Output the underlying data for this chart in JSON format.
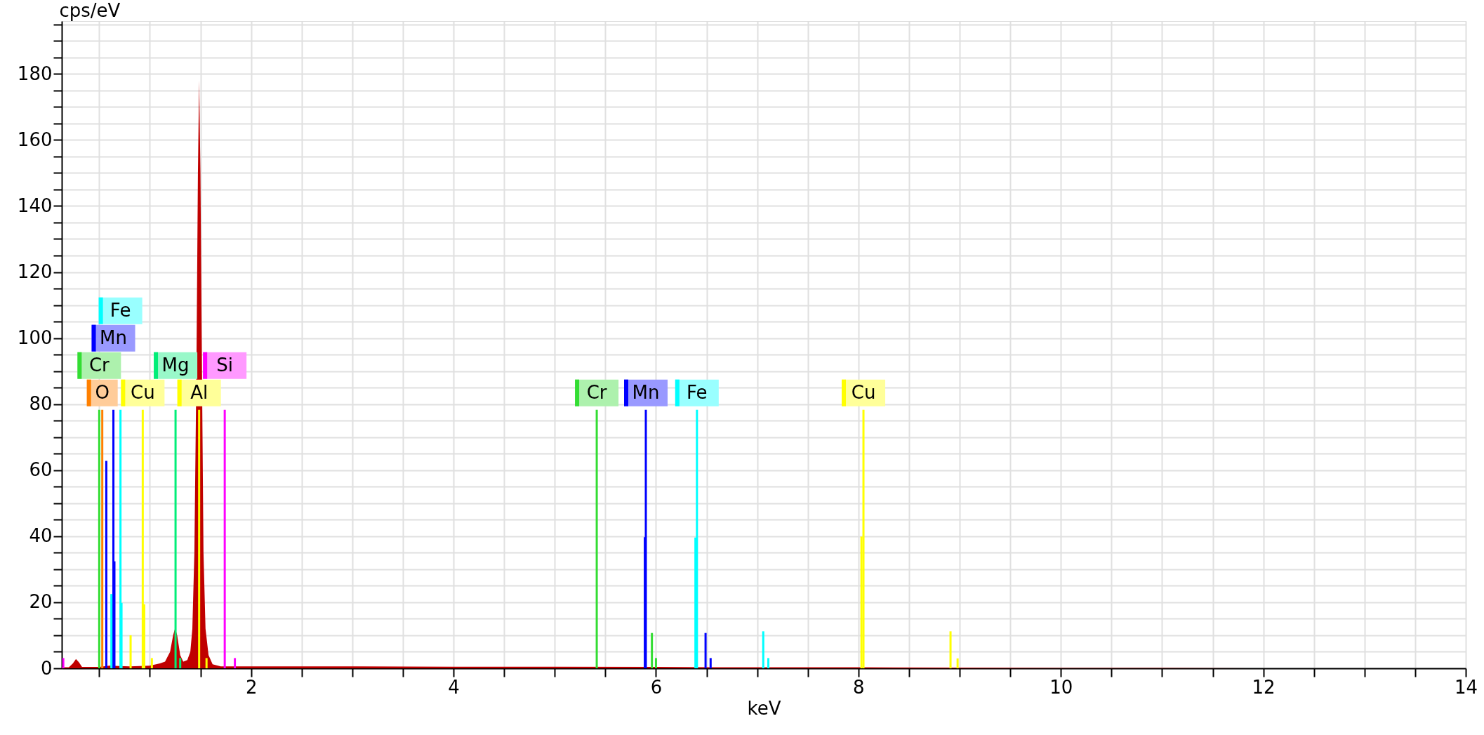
{
  "chart_data": {
    "type": "bar",
    "xlabel": "keV",
    "ylabel": "cps/eV",
    "xlim": [
      0.13,
      14
    ],
    "ylim": [
      0,
      196
    ],
    "xticks": [
      {
        "value": 0.5,
        "label": null
      },
      {
        "value": 1,
        "label": null
      },
      {
        "value": 1.5,
        "label": null
      },
      2,
      {
        "value": 2.5,
        "label": null
      },
      {
        "value": 3,
        "label": null
      },
      {
        "value": 3.5,
        "label": null
      },
      4,
      {
        "value": 4.5,
        "label": null
      },
      {
        "value": 5,
        "label": null
      },
      {
        "value": 5.5,
        "label": null
      },
      6,
      {
        "value": 6.5,
        "label": null
      },
      {
        "value": 7,
        "label": null
      },
      {
        "value": 7.5,
        "label": null
      },
      8,
      {
        "value": 8.5,
        "label": null
      },
      {
        "value": 9,
        "label": null
      },
      {
        "value": 9.5,
        "label": null
      },
      10,
      {
        "value": 10.5,
        "label": null
      },
      {
        "value": 11,
        "label": null
      },
      {
        "value": 11.5,
        "label": null
      },
      12,
      {
        "value": 12.5,
        "label": null
      },
      {
        "value": 13,
        "label": null
      },
      {
        "value": 13.5,
        "label": null
      },
      14
    ],
    "yticks": [
      0,
      {
        "value": 5,
        "label": null
      },
      {
        "value": 10,
        "label": null
      },
      {
        "value": 15,
        "label": null
      },
      20,
      {
        "value": 25,
        "label": null
      },
      {
        "value": 30,
        "label": null
      },
      {
        "value": 35,
        "label": null
      },
      40,
      {
        "value": 45,
        "label": null
      },
      {
        "value": 50,
        "label": null
      },
      {
        "value": 55,
        "label": null
      },
      60,
      {
        "value": 65,
        "label": null
      },
      {
        "value": 70,
        "label": null
      },
      {
        "value": 75,
        "label": null
      },
      80,
      {
        "value": 85,
        "label": null
      },
      {
        "value": 90,
        "label": null
      },
      {
        "value": 95,
        "label": null
      },
      100,
      {
        "value": 105,
        "label": null
      },
      {
        "value": 110,
        "label": null
      },
      {
        "value": 115,
        "label": null
      },
      120,
      {
        "value": 125,
        "label": null
      },
      {
        "value": 130,
        "label": null
      },
      {
        "value": 135,
        "label": null
      },
      140,
      {
        "value": 145,
        "label": null
      },
      {
        "value": 150,
        "label": null
      },
      {
        "value": 155,
        "label": null
      },
      160,
      {
        "value": 165,
        "label": null
      },
      {
        "value": 170,
        "label": null
      },
      {
        "value": 175,
        "label": null
      },
      180,
      {
        "value": 185,
        "label": null
      },
      {
        "value": 190,
        "label": null
      },
      {
        "value": 195,
        "label": null
      }
    ],
    "grid": true,
    "legend": "bottom left",
    "series": [
      {
        "name": "O",
        "color": "#ff8000",
        "x": [
          0.53
        ],
        "values": [
          78.3
        ]
      },
      {
        "name": "Cr",
        "color": "#33dd33",
        "x": [
          0.5
        ],
        "values": [
          78.3
        ]
      },
      {
        "name": "Mn",
        "color": "#0000ff",
        "x": [
          0.57,
          0.64,
          0.65
        ],
        "values": [
          62.8,
          78.3,
          32.4
        ]
      },
      {
        "name": "Fe",
        "color": "#00ffff",
        "x": [
          0.62,
          0.71,
          0.72
        ],
        "values": [
          22.5,
          78.3,
          19.8
        ]
      },
      {
        "name": "Cu",
        "color": "#ffff00",
        "x": [
          0.81,
          0.93,
          0.945,
          1.02
        ],
        "values": [
          10,
          78.3,
          19.4,
          3.1
        ]
      },
      {
        "name": "Mg",
        "color": "#00ee77",
        "x": [
          1.254,
          1.3
        ],
        "values": [
          78.3,
          3.1
        ]
      },
      {
        "name": "Al",
        "color": "#ffff00",
        "x": [
          1.487,
          1.56
        ],
        "values": [
          78.3,
          3.1
        ]
      },
      {
        "name": "Si",
        "color": "#ff00ff",
        "x": [
          0.145,
          1.74,
          1.84
        ],
        "values": [
          3.1,
          78.3,
          3.1
        ]
      },
      {
        "name": "Cr",
        "color": "#33dd33",
        "x": [
          5.415,
          5.96,
          6.0
        ],
        "values": [
          78.3,
          10.7,
          3.1
        ]
      },
      {
        "name": "Mn",
        "color": "#0000ff",
        "x": [
          5.89,
          5.9,
          6.49,
          6.54
        ],
        "values": [
          39.7,
          78.3,
          10.7,
          3.1
        ]
      },
      {
        "name": "Fe",
        "color": "#00ffff",
        "x": [
          6.39,
          6.405,
          7.06,
          7.11
        ],
        "values": [
          39.6,
          78.3,
          11.2,
          3.1
        ]
      },
      {
        "name": "Cu",
        "color": "#ffff00",
        "x": [
          8.03,
          8.05,
          8.91,
          8.98
        ],
        "values": [
          39.9,
          78.3,
          11.2,
          3.0
        ]
      },
      {
        "type": "area",
        "color": "#c00000",
        "x": [
          0.13,
          0.2,
          0.24,
          0.27,
          0.3,
          0.33,
          0.5,
          0.6,
          0.8,
          1.0,
          1.1,
          1.15,
          1.2,
          1.23,
          1.25,
          1.27,
          1.3,
          1.33,
          1.37,
          1.4,
          1.42,
          1.44,
          1.46,
          1.475,
          1.487,
          1.5,
          1.515,
          1.53,
          1.55,
          1.58,
          1.62,
          1.7,
          2,
          3,
          4,
          5,
          6,
          7,
          8,
          9,
          10,
          11,
          12,
          14
        ],
        "values": [
          0.3,
          0.3,
          1.5,
          2.8,
          1.8,
          0.4,
          0.4,
          0.8,
          0.6,
          0.8,
          1.5,
          2,
          5,
          10,
          12.2,
          10,
          4,
          2,
          2.5,
          5,
          12,
          35,
          90,
          150,
          178,
          150,
          90,
          35,
          12,
          4,
          1.2,
          0.6,
          0.6,
          0.6,
          0.5,
          0.5,
          0.4,
          0.3,
          0.3,
          0.2,
          0.1,
          0.1,
          0,
          0
        ]
      }
    ]
  }
}
